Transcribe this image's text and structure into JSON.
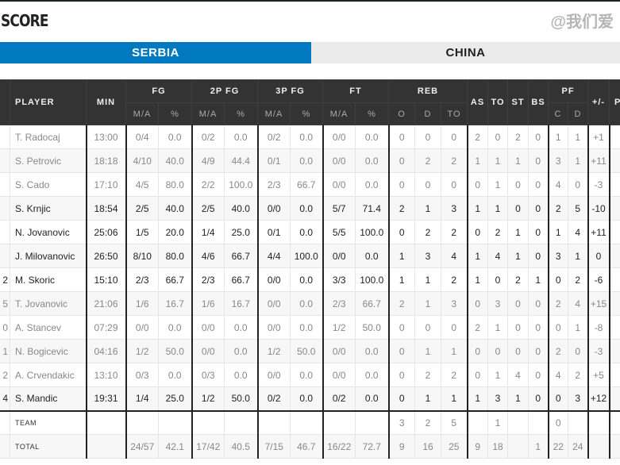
{
  "title": "SCORE",
  "tabs": [
    {
      "label": "SERBIA",
      "active": true
    },
    {
      "label": "CHINA",
      "active": false
    }
  ],
  "colors": {
    "accent": "#0079c1",
    "header_bg": "#333333"
  },
  "header": {
    "player": "PLAYER",
    "min": "MIN",
    "fg": "FG",
    "p2": "2P FG",
    "p3": "3P FG",
    "ft": "FT",
    "reb": "REB",
    "as": "AS",
    "to": "TO",
    "st": "ST",
    "bs": "BS",
    "pf": "PF",
    "pm": "+/-",
    "pts": "P",
    "ma": "M/A",
    "pct": "%",
    "o": "O",
    "d": "D",
    "tot": "TO",
    "c": "C"
  },
  "rows": [
    {
      "no": "",
      "name": "T. Radocaj",
      "min": "13:00",
      "fg": "0/4",
      "fgp": "0.0",
      "p2": "0/2",
      "p2p": "0.0",
      "p3": "0/2",
      "p3p": "0.0",
      "ft": "0/0",
      "ftp": "0.0",
      "o": "0",
      "d": "0",
      "t": "0",
      "as": "2",
      "to": "0",
      "st": "2",
      "bs": "0",
      "pfc": "1",
      "pfd": "1",
      "pm": "+1",
      "dark": false
    },
    {
      "no": "",
      "name": "S. Petrovic",
      "min": "18:18",
      "fg": "4/10",
      "fgp": "40.0",
      "p2": "4/9",
      "p2p": "44.4",
      "p3": "0/1",
      "p3p": "0.0",
      "ft": "0/0",
      "ftp": "0.0",
      "o": "0",
      "d": "2",
      "t": "2",
      "as": "1",
      "to": "1",
      "st": "1",
      "bs": "0",
      "pfc": "3",
      "pfd": "1",
      "pm": "+11",
      "dark": false
    },
    {
      "no": "",
      "name": "S. Cado",
      "min": "17:10",
      "fg": "4/5",
      "fgp": "80.0",
      "p2": "2/2",
      "p2p": "100.0",
      "p3": "2/3",
      "p3p": "66.7",
      "ft": "0/0",
      "ftp": "0.0",
      "o": "0",
      "d": "0",
      "t": "0",
      "as": "0",
      "to": "1",
      "st": "0",
      "bs": "0",
      "pfc": "4",
      "pfd": "0",
      "pm": "-3",
      "dark": false
    },
    {
      "no": "",
      "name": "S. Krnjic",
      "min": "18:54",
      "fg": "2/5",
      "fgp": "40.0",
      "p2": "2/5",
      "p2p": "40.0",
      "p3": "0/0",
      "p3p": "0.0",
      "ft": "5/7",
      "ftp": "71.4",
      "o": "2",
      "d": "1",
      "t": "3",
      "as": "1",
      "to": "1",
      "st": "0",
      "bs": "0",
      "pfc": "2",
      "pfd": "5",
      "pm": "-10",
      "dark": true
    },
    {
      "no": "",
      "name": "N. Jovanovic",
      "min": "25:06",
      "fg": "1/5",
      "fgp": "20.0",
      "p2": "1/4",
      "p2p": "25.0",
      "p3": "0/1",
      "p3p": "0.0",
      "ft": "5/5",
      "ftp": "100.0",
      "o": "0",
      "d": "2",
      "t": "2",
      "as": "0",
      "to": "2",
      "st": "1",
      "bs": "0",
      "pfc": "1",
      "pfd": "4",
      "pm": "+11",
      "dark": true
    },
    {
      "no": "",
      "name": "J. Milovanovic",
      "min": "26:50",
      "fg": "8/10",
      "fgp": "80.0",
      "p2": "4/6",
      "p2p": "66.7",
      "p3": "4/4",
      "p3p": "100.0",
      "ft": "0/0",
      "ftp": "0.0",
      "o": "1",
      "d": "3",
      "t": "4",
      "as": "1",
      "to": "4",
      "st": "1",
      "bs": "0",
      "pfc": "3",
      "pfd": "1",
      "pm": "0",
      "dark": true
    },
    {
      "no": "2",
      "name": "M. Skoric",
      "min": "15:10",
      "fg": "2/3",
      "fgp": "66.7",
      "p2": "2/3",
      "p2p": "66.7",
      "p3": "0/0",
      "p3p": "0.0",
      "ft": "3/3",
      "ftp": "100.0",
      "o": "1",
      "d": "1",
      "t": "2",
      "as": "1",
      "to": "0",
      "st": "2",
      "bs": "1",
      "pfc": "0",
      "pfd": "2",
      "pm": "-6",
      "dark": true
    },
    {
      "no": "5",
      "name": "T. Jovanovic",
      "min": "21:06",
      "fg": "1/6",
      "fgp": "16.7",
      "p2": "1/6",
      "p2p": "16.7",
      "p3": "0/0",
      "p3p": "0.0",
      "ft": "2/3",
      "ftp": "66.7",
      "o": "2",
      "d": "1",
      "t": "3",
      "as": "0",
      "to": "3",
      "st": "0",
      "bs": "0",
      "pfc": "2",
      "pfd": "4",
      "pm": "+15",
      "dark": false
    },
    {
      "no": "0",
      "name": "A. Stancev",
      "min": "07:29",
      "fg": "0/0",
      "fgp": "0.0",
      "p2": "0/0",
      "p2p": "0.0",
      "p3": "0/0",
      "p3p": "0.0",
      "ft": "1/2",
      "ftp": "50.0",
      "o": "0",
      "d": "0",
      "t": "0",
      "as": "2",
      "to": "1",
      "st": "0",
      "bs": "0",
      "pfc": "0",
      "pfd": "1",
      "pm": "-8",
      "dark": false
    },
    {
      "no": "1",
      "name": "N. Bogicevic",
      "min": "04:16",
      "fg": "1/2",
      "fgp": "50.0",
      "p2": "0/0",
      "p2p": "0.0",
      "p3": "1/2",
      "p3p": "50.0",
      "ft": "0/0",
      "ftp": "0.0",
      "o": "0",
      "d": "1",
      "t": "1",
      "as": "0",
      "to": "0",
      "st": "0",
      "bs": "0",
      "pfc": "2",
      "pfd": "0",
      "pm": "-3",
      "dark": false
    },
    {
      "no": "2",
      "name": "A. Crvendakic",
      "min": "13:10",
      "fg": "0/3",
      "fgp": "0.0",
      "p2": "0/3",
      "p2p": "0.0",
      "p3": "0/0",
      "p3p": "0.0",
      "ft": "0/0",
      "ftp": "0.0",
      "o": "0",
      "d": "2",
      "t": "2",
      "as": "0",
      "to": "1",
      "st": "4",
      "bs": "0",
      "pfc": "4",
      "pfd": "2",
      "pm": "+5",
      "dark": false
    },
    {
      "no": "4",
      "name": "S. Mandic",
      "min": "19:31",
      "fg": "1/4",
      "fgp": "25.0",
      "p2": "1/2",
      "p2p": "50.0",
      "p3": "0/2",
      "p3p": "0.0",
      "ft": "0/2",
      "ftp": "0.0",
      "o": "0",
      "d": "1",
      "t": "1",
      "as": "1",
      "to": "3",
      "st": "1",
      "bs": "0",
      "pfc": "0",
      "pfd": "3",
      "pm": "+12",
      "dark": true
    }
  ],
  "team": {
    "name": "TEAM",
    "min": "",
    "fg": "",
    "fgp": "",
    "p2": "",
    "p2p": "",
    "p3": "",
    "p3p": "",
    "ft": "",
    "ftp": "",
    "o": "3",
    "d": "2",
    "t": "5",
    "as": "",
    "to": "1",
    "st": "",
    "bs": "",
    "pfc": "0",
    "pfd": "",
    "pm": ""
  },
  "total": {
    "name": "TOTAL",
    "min": "",
    "fg": "24/57",
    "fgp": "42.1",
    "p2": "17/42",
    "p2p": "40.5",
    "p3": "7/15",
    "p3p": "46.7",
    "ft": "16/22",
    "ftp": "72.7",
    "o": "9",
    "d": "16",
    "t": "25",
    "as": "9",
    "to": "18",
    "st": "",
    "bs": "1",
    "pfc": "22",
    "pfd": "24",
    "pm": ""
  },
  "watermark": "@我们爱"
}
